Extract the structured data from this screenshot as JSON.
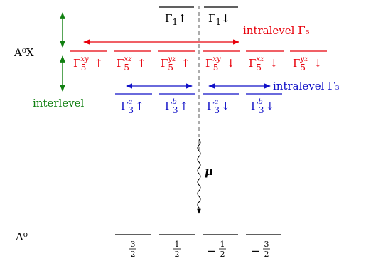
{
  "colors": {
    "black": "#000000",
    "red": "#e8000b",
    "blue": "#1010c8",
    "green": "#118011",
    "gray": "#888888"
  },
  "labels": {
    "excited_state": "A⁰X",
    "ground_state": "A⁰",
    "interlevel": "interlevel",
    "intralevel_g5": "intralevel Γ₅",
    "intralevel_g3": "intralevel Γ₃",
    "mu": "μ"
  },
  "gamma1_levels": [
    {
      "symbol": "Γ",
      "sub": "1",
      "spin": "↑"
    },
    {
      "symbol": "Γ",
      "sub": "1",
      "spin": "↓"
    }
  ],
  "gamma5_levels": [
    {
      "symbol": "Γ",
      "sub": "5",
      "sup": "xy",
      "spin": "↑"
    },
    {
      "symbol": "Γ",
      "sub": "5",
      "sup": "xz",
      "spin": "↑"
    },
    {
      "symbol": "Γ",
      "sub": "5",
      "sup": "yz",
      "spin": "↑"
    },
    {
      "symbol": "Γ",
      "sub": "5",
      "sup": "xy",
      "spin": "↓"
    },
    {
      "symbol": "Γ",
      "sub": "5",
      "sup": "xz",
      "spin": "↓"
    },
    {
      "symbol": "Γ",
      "sub": "5",
      "sup": "yz",
      "spin": "↓"
    }
  ],
  "gamma3_levels": [
    {
      "symbol": "Γ",
      "sub": "3",
      "sup": "a",
      "spin": "↑"
    },
    {
      "symbol": "Γ",
      "sub": "3",
      "sup": "b",
      "spin": "↑"
    },
    {
      "symbol": "Γ",
      "sub": "3",
      "sup": "a",
      "spin": "↓"
    },
    {
      "symbol": "Γ",
      "sub": "3",
      "sup": "b",
      "spin": "↓"
    }
  ],
  "ground_levels": [
    {
      "sign": "",
      "num": "3",
      "den": "2"
    },
    {
      "sign": "",
      "num": "1",
      "den": "2"
    },
    {
      "sign": "−",
      "num": "1",
      "den": "2"
    },
    {
      "sign": "−",
      "num": "3",
      "den": "2"
    }
  ]
}
